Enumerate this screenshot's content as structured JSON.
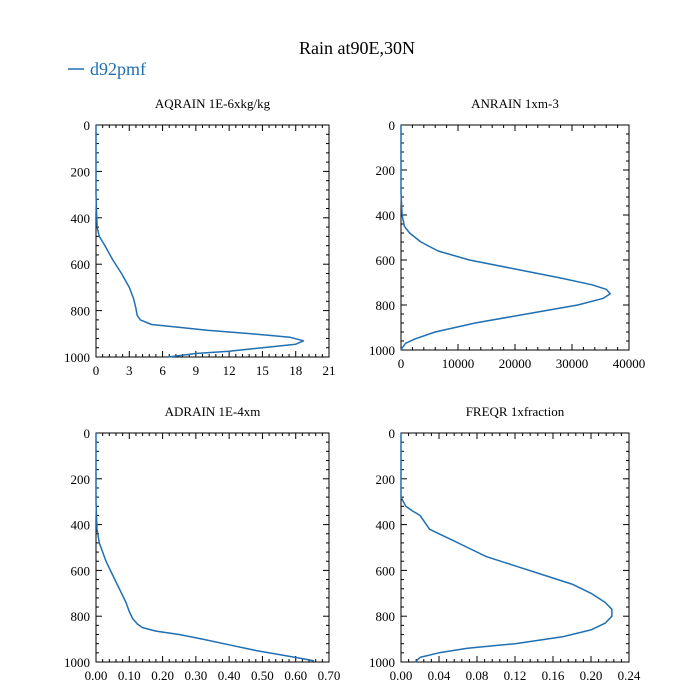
{
  "figure": {
    "title": "Rain at90E,30N",
    "legend": {
      "label": "d92pmf",
      "color": "#1f6fb2"
    }
  },
  "chart_data": [
    {
      "type": "line",
      "title": "AQRAIN  1E-6xkg/kg",
      "xlabel": "",
      "ylabel": "",
      "xlim": [
        0,
        21
      ],
      "ylim": [
        1000,
        0
      ],
      "xticks": [
        "0",
        "3",
        "6",
        "9",
        "12",
        "15",
        "18",
        "21"
      ],
      "yticks": [
        "0",
        "200",
        "400",
        "600",
        "800",
        "1000"
      ],
      "xtick_values": [
        0,
        3,
        6,
        9,
        12,
        15,
        18,
        21
      ],
      "ytick_values": [
        0,
        200,
        400,
        600,
        800,
        1000
      ],
      "series": [
        {
          "name": "d92pmf",
          "x": [
            0,
            0,
            0.1,
            0.3,
            0.8,
            1.5,
            2.3,
            3.0,
            3.4,
            3.6,
            3.7,
            4.0,
            5.0,
            7.0,
            10.0,
            14.0,
            17.5,
            18.7,
            18.0,
            15.0,
            12.0,
            9.0,
            6.5
          ],
          "y": [
            0,
            300,
            440,
            480,
            520,
            580,
            640,
            700,
            750,
            790,
            820,
            840,
            860,
            870,
            885,
            900,
            915,
            930,
            945,
            960,
            975,
            985,
            1000
          ]
        }
      ]
    },
    {
      "type": "line",
      "title": "ANRAIN  1xm-3",
      "xlabel": "",
      "ylabel": "",
      "xlim": [
        0,
        40000
      ],
      "ylim": [
        1000,
        0
      ],
      "xticks": [
        "0",
        "10000",
        "20000",
        "30000",
        "40000"
      ],
      "yticks": [
        "0",
        "200",
        "400",
        "600",
        "800",
        "1000"
      ],
      "xtick_values": [
        0,
        10000,
        20000,
        30000,
        40000
      ],
      "ytick_values": [
        0,
        200,
        400,
        600,
        800,
        1000
      ],
      "series": [
        {
          "name": "d92pmf",
          "x": [
            0,
            0,
            200,
            600,
            1500,
            3500,
            6500,
            12000,
            20000,
            28000,
            33500,
            36000,
            36700,
            35500,
            31000,
            22000,
            13000,
            6000,
            2500,
            800,
            200,
            0
          ],
          "y": [
            0,
            300,
            400,
            450,
            480,
            520,
            560,
            600,
            640,
            680,
            710,
            730,
            750,
            770,
            800,
            840,
            880,
            920,
            950,
            970,
            990,
            1000
          ]
        }
      ]
    },
    {
      "type": "line",
      "title": "ADRAIN  1E-4xm",
      "xlabel": "",
      "ylabel": "",
      "xlim": [
        0,
        0.7
      ],
      "ylim": [
        1000,
        0
      ],
      "xticks": [
        "0.00",
        "0.10",
        "0.20",
        "0.30",
        "0.40",
        "0.50",
        "0.60",
        "0.70"
      ],
      "yticks": [
        "0",
        "200",
        "400",
        "600",
        "800",
        "1000"
      ],
      "xtick_values": [
        0,
        0.1,
        0.2,
        0.3,
        0.4,
        0.5,
        0.6,
        0.7
      ],
      "ytick_values": [
        0,
        200,
        400,
        600,
        800,
        1000
      ],
      "series": [
        {
          "name": "d92pmf",
          "x": [
            0,
            0,
            0.003,
            0.01,
            0.03,
            0.05,
            0.07,
            0.09,
            0.1,
            0.11,
            0.125,
            0.14,
            0.18,
            0.25,
            0.32,
            0.4,
            0.48,
            0.56,
            0.62,
            0.655
          ],
          "y": [
            0,
            300,
            420,
            480,
            560,
            620,
            680,
            740,
            780,
            810,
            835,
            850,
            865,
            880,
            900,
            925,
            950,
            970,
            985,
            995
          ]
        }
      ]
    },
    {
      "type": "line",
      "title": "FREQR  1xfraction",
      "xlabel": "",
      "ylabel": "",
      "xlim": [
        0,
        0.24
      ],
      "ylim": [
        1000,
        0
      ],
      "xticks": [
        "0.00",
        "0.04",
        "0.08",
        "0.12",
        "0.16",
        "0.20",
        "0.24"
      ],
      "yticks": [
        "0",
        "200",
        "400",
        "600",
        "800",
        "1000"
      ],
      "xtick_values": [
        0,
        0.04,
        0.08,
        0.12,
        0.16,
        0.2,
        0.24
      ],
      "ytick_values": [
        0,
        200,
        400,
        600,
        800,
        1000
      ],
      "series": [
        {
          "name": "d92pmf",
          "x": [
            0,
            0,
            0.005,
            0.012,
            0.02,
            0.025,
            0.03,
            0.04,
            0.055,
            0.07,
            0.09,
            0.12,
            0.15,
            0.18,
            0.2,
            0.215,
            0.222,
            0.222,
            0.215,
            0.2,
            0.17,
            0.12,
            0.07,
            0.04,
            0.02,
            0.015
          ],
          "y": [
            0,
            280,
            320,
            340,
            360,
            390,
            420,
            440,
            470,
            500,
            540,
            580,
            620,
            660,
            700,
            740,
            770,
            800,
            830,
            860,
            890,
            920,
            940,
            960,
            980,
            1000
          ]
        }
      ]
    }
  ]
}
